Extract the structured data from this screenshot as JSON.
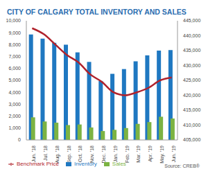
{
  "chart_data": {
    "type": "bar",
    "title": "CITY OF CALGARY TOTAL INVENTORY AND SALES",
    "annotations": [
      "Source: CREB®"
    ],
    "categories": [
      "Jun. '18",
      "Jul. '18",
      "Aug. '18",
      "Sep. '18",
      "Oct. '18",
      "Nov. '18",
      "Dec. '18",
      "Jan. '19",
      "Feb. '19",
      "Mar. '19",
      "Apr. '19",
      "May. '19",
      "Jun. '19"
    ],
    "series": [
      {
        "name": "Inventory",
        "type": "bar",
        "color": "#1f78c1",
        "values": [
          8850,
          8500,
          8150,
          8000,
          7350,
          6550,
          4950,
          5550,
          5950,
          6600,
          7100,
          7500,
          7550
        ]
      },
      {
        "name": "Sales",
        "type": "bar",
        "color": "#7cb342",
        "values": [
          1900,
          1550,
          1450,
          1250,
          1300,
          1050,
          750,
          850,
          1000,
          1350,
          1500,
          1950,
          1800
        ]
      },
      {
        "name": "Benchmark Price",
        "type": "line",
        "color": "#b0222b",
        "axis": "y2",
        "values": [
          442500,
          440500,
          437000,
          433500,
          431000,
          427000,
          424500,
          421000,
          420000,
          421000,
          422500,
          425000,
          426000
        ]
      }
    ],
    "ylim": [
      0,
      10000
    ],
    "yticks": [
      0,
      {
        "value": 1000,
        "label": "1,000"
      },
      {
        "value": 2000,
        "label": "2,000"
      },
      {
        "value": 3000,
        "label": "3,000"
      },
      {
        "value": 4000,
        "label": "4,000"
      },
      {
        "value": 5000,
        "label": "5,000"
      },
      {
        "value": 6000,
        "label": "6,000"
      },
      {
        "value": 7000,
        "label": "7,000"
      },
      {
        "value": 8000,
        "label": "8,000"
      },
      {
        "value": 9000,
        "label": "9,000"
      },
      {
        "value": 10000,
        "label": "10,000"
      }
    ],
    "y2lim": [
      405000,
      445000
    ],
    "y2ticks": [
      {
        "value": 405000,
        "label": "405,000"
      },
      {
        "value": 410000,
        "label": "410,000"
      },
      {
        "value": 415000,
        "label": "415,000"
      },
      {
        "value": 420000,
        "label": "420,000"
      },
      {
        "value": 425000,
        "label": "425,000"
      },
      {
        "value": 430000,
        "label": "430,000"
      },
      {
        "value": 435000,
        "label": "435,000"
      },
      {
        "value": 440000,
        "label": "440,000"
      },
      {
        "value": 445000,
        "label": "445,000"
      }
    ],
    "legend": "bottom"
  }
}
